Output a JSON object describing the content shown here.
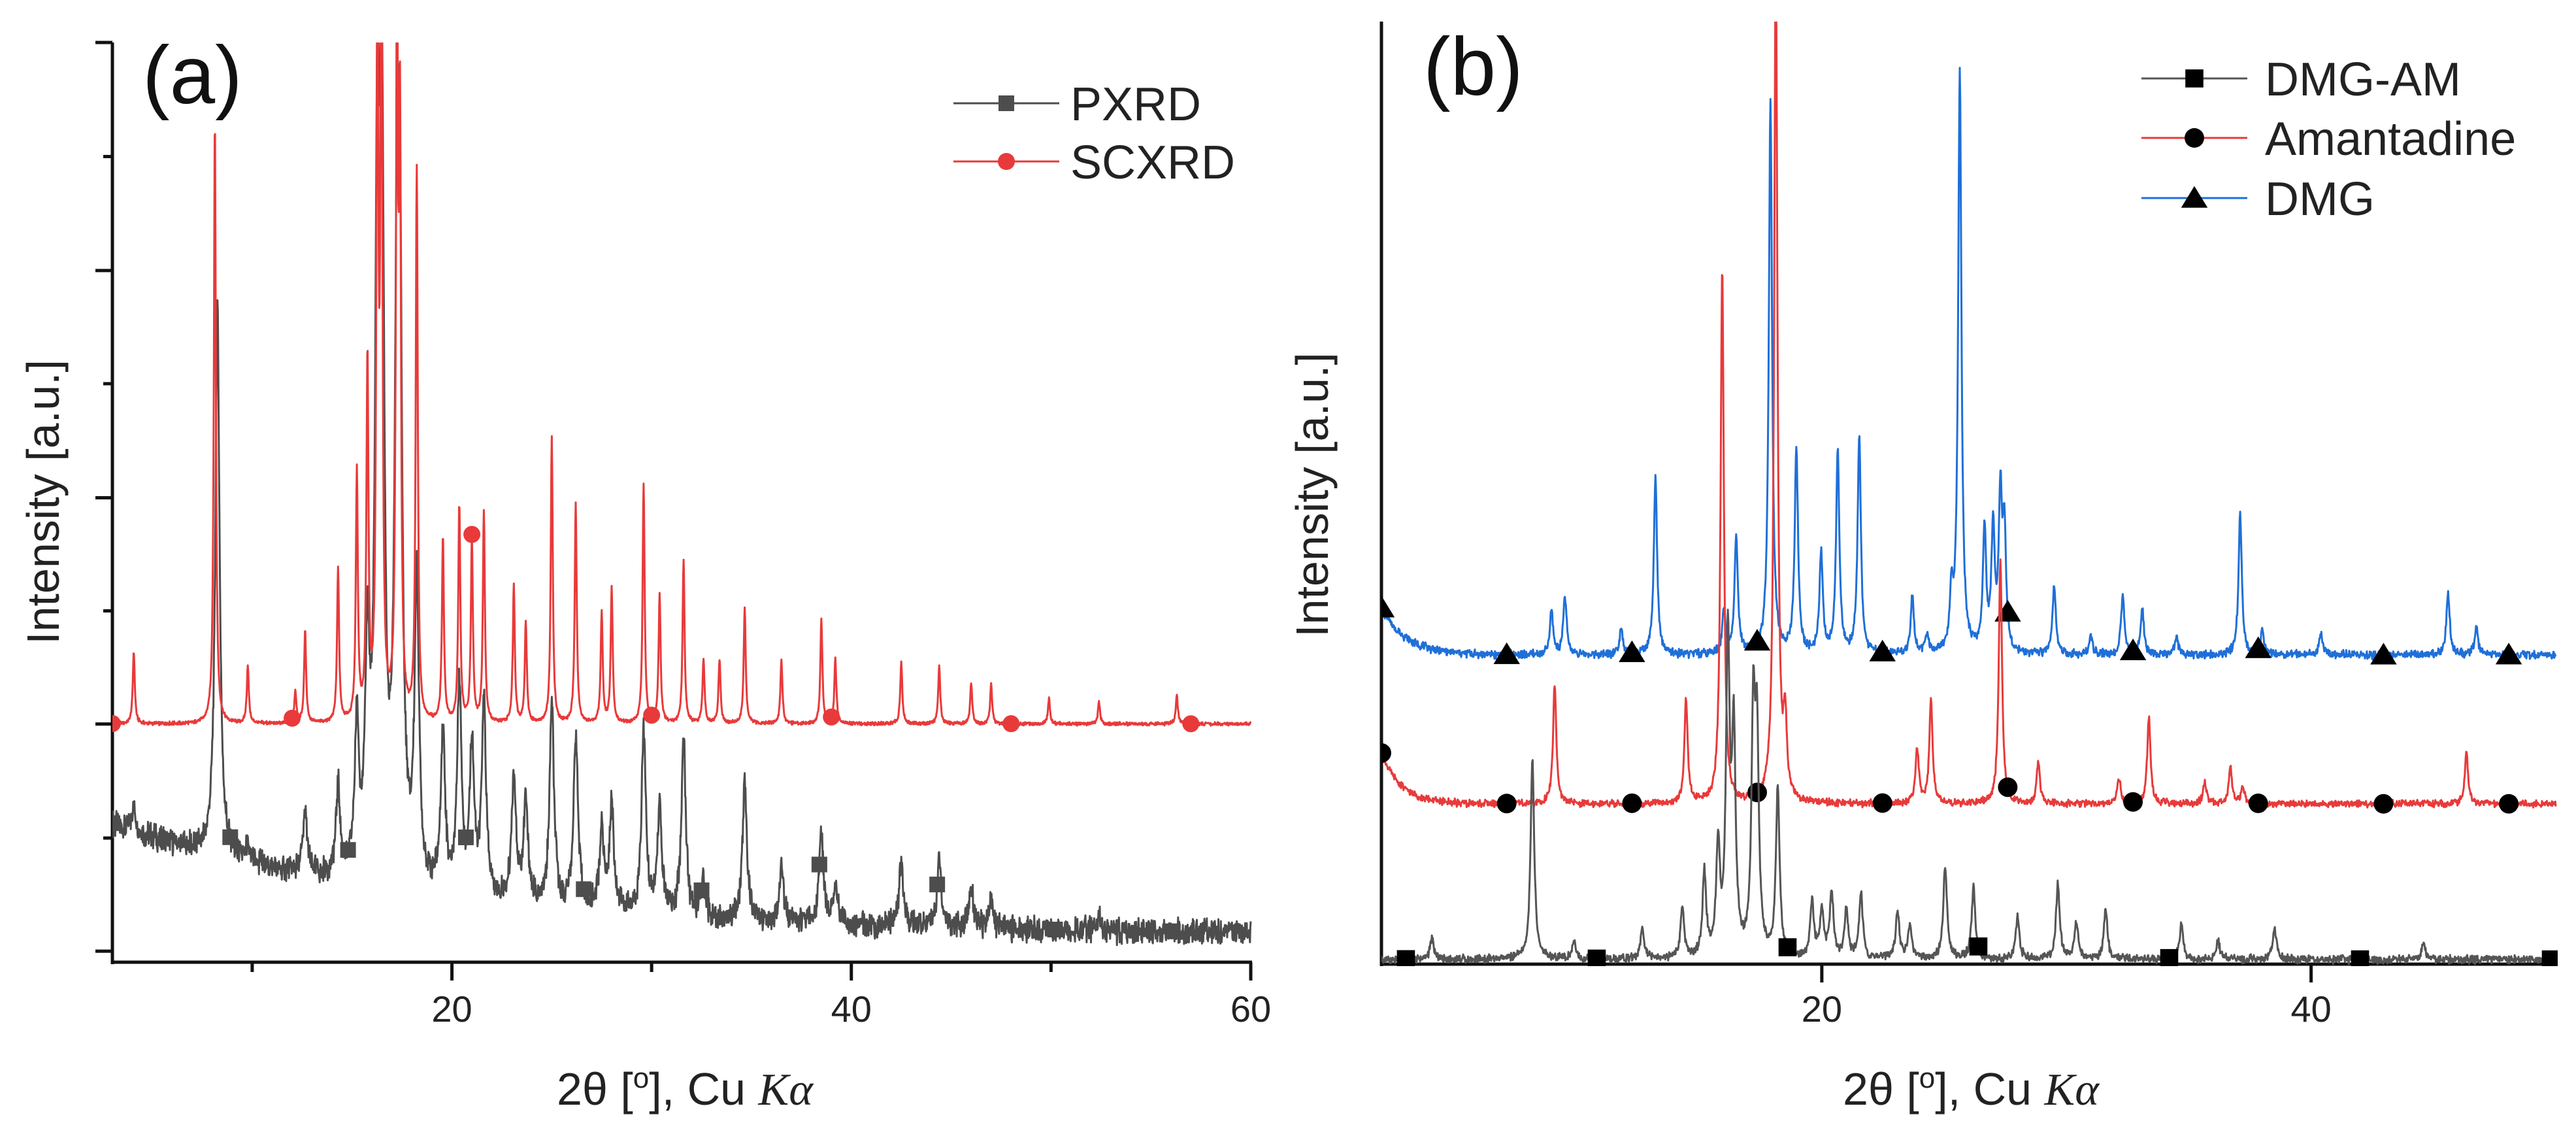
{
  "chart_data": [
    {
      "type": "line",
      "panel_label": "(a)",
      "title": "",
      "xlabel": "2θ [º], Cu Kα",
      "xlabel_parts": [
        "2θ [",
        "o",
        "], Cu ",
        "Kα"
      ],
      "ylabel": "Intensity [a.u.]",
      "xlim": [
        3,
        60
      ],
      "ylim": [
        0,
        100
      ],
      "xticks_major": [
        20,
        40,
        60
      ],
      "xtick_labels": [
        "20",
        "40",
        "60"
      ],
      "xticks_minor": [
        10,
        30,
        50
      ],
      "yticks_major": [
        1.2,
        25.9,
        50.5,
        75.2,
        100
      ],
      "yticks_minor": [
        13.5,
        38.2,
        62.9,
        87.6
      ],
      "grid": false,
      "legend_position": "top-right",
      "series": [
        {
          "name": "PXRD",
          "color": "#4d4d4d",
          "marker": "square",
          "baseline": {
            "c": 3,
            "a": 12,
            "x0": 3,
            "tau": 15
          },
          "hwhm": 0.13,
          "noise": 1.1,
          "peaks": [
            [
              4.07,
              2.5
            ],
            [
              8.26,
              59
            ],
            [
              9.78,
              1.5
            ],
            [
              12.65,
              6.5
            ],
            [
              14.3,
              9.5
            ],
            [
              15.24,
              16
            ],
            [
              15.77,
              23
            ],
            [
              16.27,
              74
            ],
            [
              16.5,
              72
            ],
            [
              17.25,
              58
            ],
            [
              17.4,
              56
            ],
            [
              18.24,
              33
            ],
            [
              19.55,
              17
            ],
            [
              20.37,
              23
            ],
            [
              21.0,
              16.5
            ],
            [
              21.6,
              21
            ],
            [
              23.1,
              14
            ],
            [
              23.7,
              11
            ],
            [
              25.0,
              22
            ],
            [
              26.2,
              19
            ],
            [
              27.5,
              8.5
            ],
            [
              28.0,
              11.5
            ],
            [
              29.6,
              20
            ],
            [
              30.4,
              11.5
            ],
            [
              31.6,
              19.5
            ],
            [
              32.6,
              4
            ],
            [
              34.66,
              15
            ],
            [
              36.5,
              6
            ],
            [
              38.5,
              10
            ],
            [
              39.2,
              4
            ],
            [
              42.5,
              6.7
            ],
            [
              44.4,
              7.3
            ],
            [
              46.0,
              4.5
            ],
            [
              47.0,
              3
            ],
            [
              52.4,
              1.5
            ]
          ],
          "marker_x": [
            3.0,
            8.9,
            14.8,
            20.7,
            26.6,
            32.5,
            38.4,
            44.3,
            50.2,
            56.1
          ]
        },
        {
          "name": "SCXRD",
          "color": "#e83a3a",
          "marker": "circle",
          "baseline": {
            "c": 25.9,
            "a": 0,
            "x0": 3,
            "tau": 1
          },
          "hwhm": 0.06,
          "noise": 0.15,
          "peaks": [
            [
              4.07,
              7.9
            ],
            [
              8.13,
              66
            ],
            [
              9.78,
              6.3
            ],
            [
              12.16,
              3.5
            ],
            [
              12.65,
              10
            ],
            [
              14.3,
              16.6
            ],
            [
              15.24,
              27
            ],
            [
              15.77,
              39
            ],
            [
              16.27,
              80
            ],
            [
              16.47,
              85
            ],
            [
              17.25,
              80
            ],
            [
              17.4,
              60
            ],
            [
              18.24,
              60
            ],
            [
              19.55,
              20
            ],
            [
              20.37,
              23.7
            ],
            [
              21.0,
              20
            ],
            [
              21.6,
              23
            ],
            [
              23.1,
              15
            ],
            [
              23.7,
              11
            ],
            [
              25.0,
              31
            ],
            [
              26.2,
              24
            ],
            [
              27.5,
              12
            ],
            [
              28.0,
              14.6
            ],
            [
              29.6,
              26
            ],
            [
              30.4,
              14
            ],
            [
              31.6,
              17.6
            ],
            [
              32.6,
              7
            ],
            [
              33.4,
              7
            ],
            [
              34.66,
              12.6
            ],
            [
              36.5,
              7
            ],
            [
              38.5,
              11.3
            ],
            [
              39.2,
              7
            ],
            [
              42.5,
              6.7
            ],
            [
              44.4,
              6.3
            ],
            [
              46.0,
              4.3
            ],
            [
              47.0,
              4.3
            ],
            [
              49.9,
              2.8
            ],
            [
              52.4,
              2.4
            ],
            [
              56.3,
              3.2
            ]
          ],
          "marker_x": [
            3,
            12,
            21,
            30,
            39,
            48,
            57
          ]
        }
      ]
    },
    {
      "type": "line",
      "panel_label": "(b)",
      "title": "",
      "xlabel": "2θ [º], Cu Kα",
      "xlabel_parts": [
        "2θ [",
        "o",
        "], Cu ",
        "Kα"
      ],
      "ylabel": "Intensity [a.u.]",
      "xlim": [
        2,
        50
      ],
      "ylim": [
        0,
        100
      ],
      "xticks_major": [
        20,
        40
      ],
      "xtick_labels": [
        "20",
        "40"
      ],
      "xticks_minor": [],
      "yticks_major": [],
      "yticks_minor": [],
      "grid": false,
      "legend_position": "top-right",
      "series": [
        {
          "name": "DMG",
          "color": "#1f6fd8",
          "marker": "triangle",
          "baseline": {
            "c": 32.8,
            "a": 5,
            "x0": 2,
            "tau": 1.0
          },
          "hwhm": 0.08,
          "noise": 0.35,
          "peaks": [
            [
              8.95,
              4.6
            ],
            [
              9.5,
              6.2
            ],
            [
              11.8,
              3
            ],
            [
              13.2,
              18.9
            ],
            [
              16.0,
              4.6
            ],
            [
              16.5,
              12.8
            ],
            [
              17.9,
              58.7
            ],
            [
              18.96,
              22
            ],
            [
              19.97,
              10.7
            ],
            [
              20.65,
              21.6
            ],
            [
              21.53,
              23.2
            ],
            [
              23.7,
              6.3
            ],
            [
              24.3,
              2
            ],
            [
              25.3,
              5.4
            ],
            [
              25.64,
              61.8
            ],
            [
              26.65,
              13.1
            ],
            [
              27.0,
              12.8
            ],
            [
              27.3,
              15.8
            ],
            [
              27.46,
              12.4
            ],
            [
              29.5,
              7.4
            ],
            [
              31.0,
              2
            ],
            [
              32.3,
              6.3
            ],
            [
              33.1,
              4.8
            ],
            [
              34.5,
              2
            ],
            [
              37.1,
              15.1
            ],
            [
              38.0,
              2.5
            ],
            [
              40.4,
              2.3
            ],
            [
              45.6,
              6.7
            ],
            [
              46.75,
              3
            ]
          ],
          "marker_x": [
            2,
            7.12,
            12.24,
            17.36,
            22.48,
            27.6,
            32.72,
            37.84,
            42.96,
            48.08
          ]
        },
        {
          "name": "Amantadine",
          "color": "#e83a3a",
          "marker": "circle",
          "baseline": {
            "c": 17,
            "a": 5.4,
            "x0": 2,
            "tau": 0.8
          },
          "hwhm": 0.08,
          "noise": 0.3,
          "peaks": [
            [
              9.08,
              12.7
            ],
            [
              14.45,
              11
            ],
            [
              15.93,
              56.6
            ],
            [
              18.12,
              90
            ],
            [
              18.5,
              8
            ],
            [
              23.9,
              5.8
            ],
            [
              24.46,
              11
            ],
            [
              27.3,
              26
            ],
            [
              28.85,
              4.6
            ],
            [
              32.15,
              2.7
            ],
            [
              33.37,
              9.3
            ],
            [
              35.66,
              2.3
            ],
            [
              36.7,
              3.9
            ],
            [
              37.2,
              2
            ],
            [
              46.35,
              5.4
            ]
          ],
          "marker_x": [
            2,
            7.12,
            12.24,
            17.36,
            22.48,
            27.6,
            32.72,
            37.84,
            42.96,
            48.08
          ]
        },
        {
          "name": "DMG-AM",
          "color": "#555555",
          "marker": "square",
          "baseline": {
            "c": 0.5,
            "a": 0,
            "x0": 2,
            "tau": 1
          },
          "hwhm": 0.09,
          "noise": 0.35,
          "peaks": [
            [
              4.06,
              2.2
            ],
            [
              8.17,
              21
            ],
            [
              9.86,
              1.8
            ],
            [
              12.66,
              3.2
            ],
            [
              14.3,
              5.3
            ],
            [
              15.2,
              8.8
            ],
            [
              15.76,
              11.5
            ],
            [
              16.16,
              33
            ],
            [
              16.4,
              23
            ],
            [
              17.2,
              24.6
            ],
            [
              17.35,
              21.5
            ],
            [
              18.2,
              18
            ],
            [
              19.6,
              6
            ],
            [
              20.0,
              5
            ],
            [
              20.4,
              7
            ],
            [
              21.0,
              5
            ],
            [
              21.6,
              7
            ],
            [
              23.1,
              5
            ],
            [
              23.6,
              3.5
            ],
            [
              25.04,
              10
            ],
            [
              26.2,
              7.6
            ],
            [
              28.0,
              4.5
            ],
            [
              29.65,
              8
            ],
            [
              30.4,
              4
            ],
            [
              31.6,
              5.3
            ],
            [
              34.7,
              3.8
            ],
            [
              36.2,
              2
            ],
            [
              38.5,
              3.4
            ],
            [
              44.6,
              1.8
            ]
          ],
          "marker_x": [
            3.0,
            10.8,
            18.6,
            26.4,
            34.2,
            42.0,
            49.8
          ]
        }
      ]
    }
  ]
}
